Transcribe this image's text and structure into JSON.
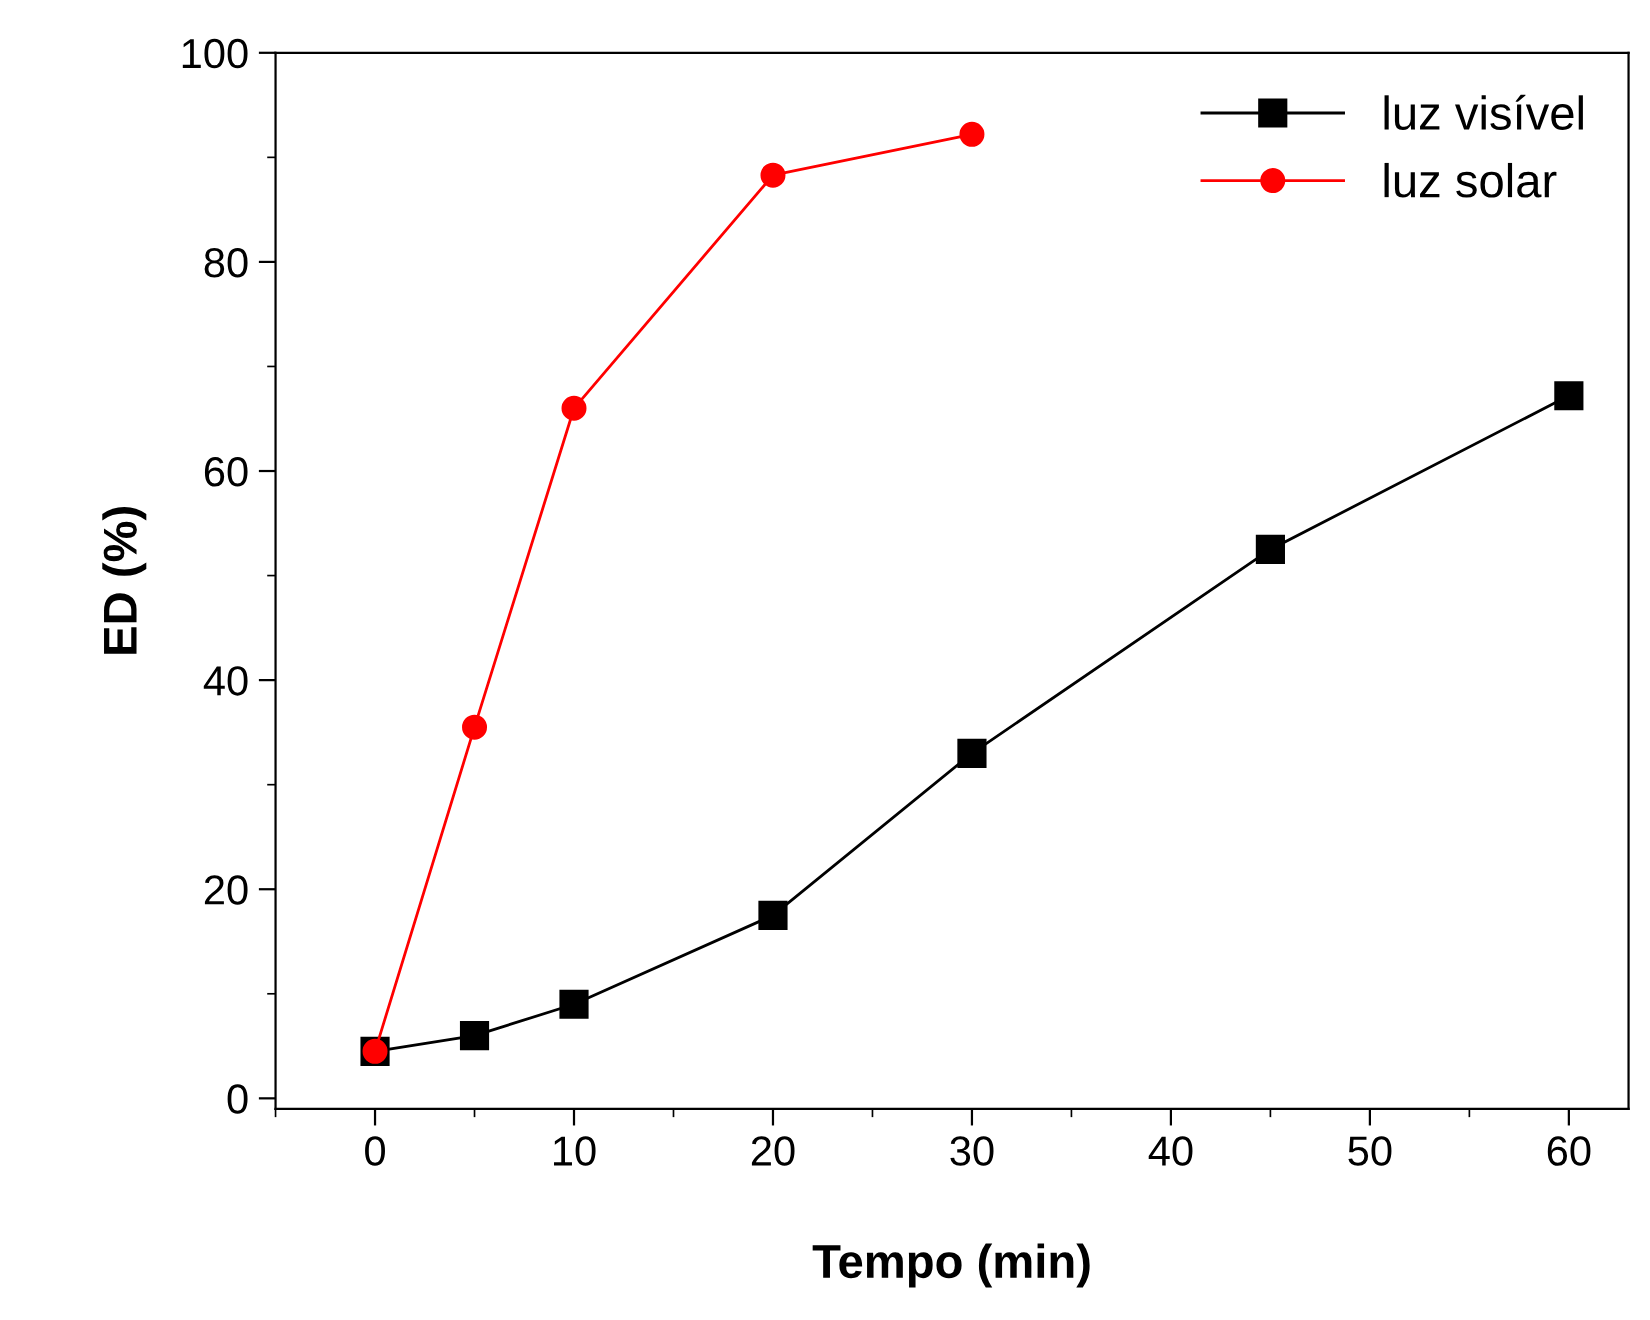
{
  "chart_data": {
    "type": "line",
    "xlabel": "Tempo (min)",
    "ylabel": "ED (%)",
    "xlim": [
      -5,
      63
    ],
    "xticks": [
      0,
      10,
      20,
      30,
      40,
      50,
      60
    ],
    "ylim": [
      -1,
      100
    ],
    "yticks": [
      0,
      20,
      40,
      60,
      80,
      100
    ],
    "grid": false,
    "legend": "top right",
    "series": [
      {
        "name": "luz visível",
        "color": "#000000",
        "marker": "square",
        "x": [
          0,
          5,
          10,
          20,
          30,
          45,
          60
        ],
        "values": [
          4.5,
          6,
          9,
          17.5,
          33,
          52.5,
          67.2
        ]
      },
      {
        "name": "luz solar",
        "color": "#ff0000",
        "marker": "circle",
        "x": [
          0,
          5,
          10,
          20,
          30
        ],
        "values": [
          4.5,
          35.5,
          66,
          88.3,
          92.2
        ]
      }
    ]
  }
}
